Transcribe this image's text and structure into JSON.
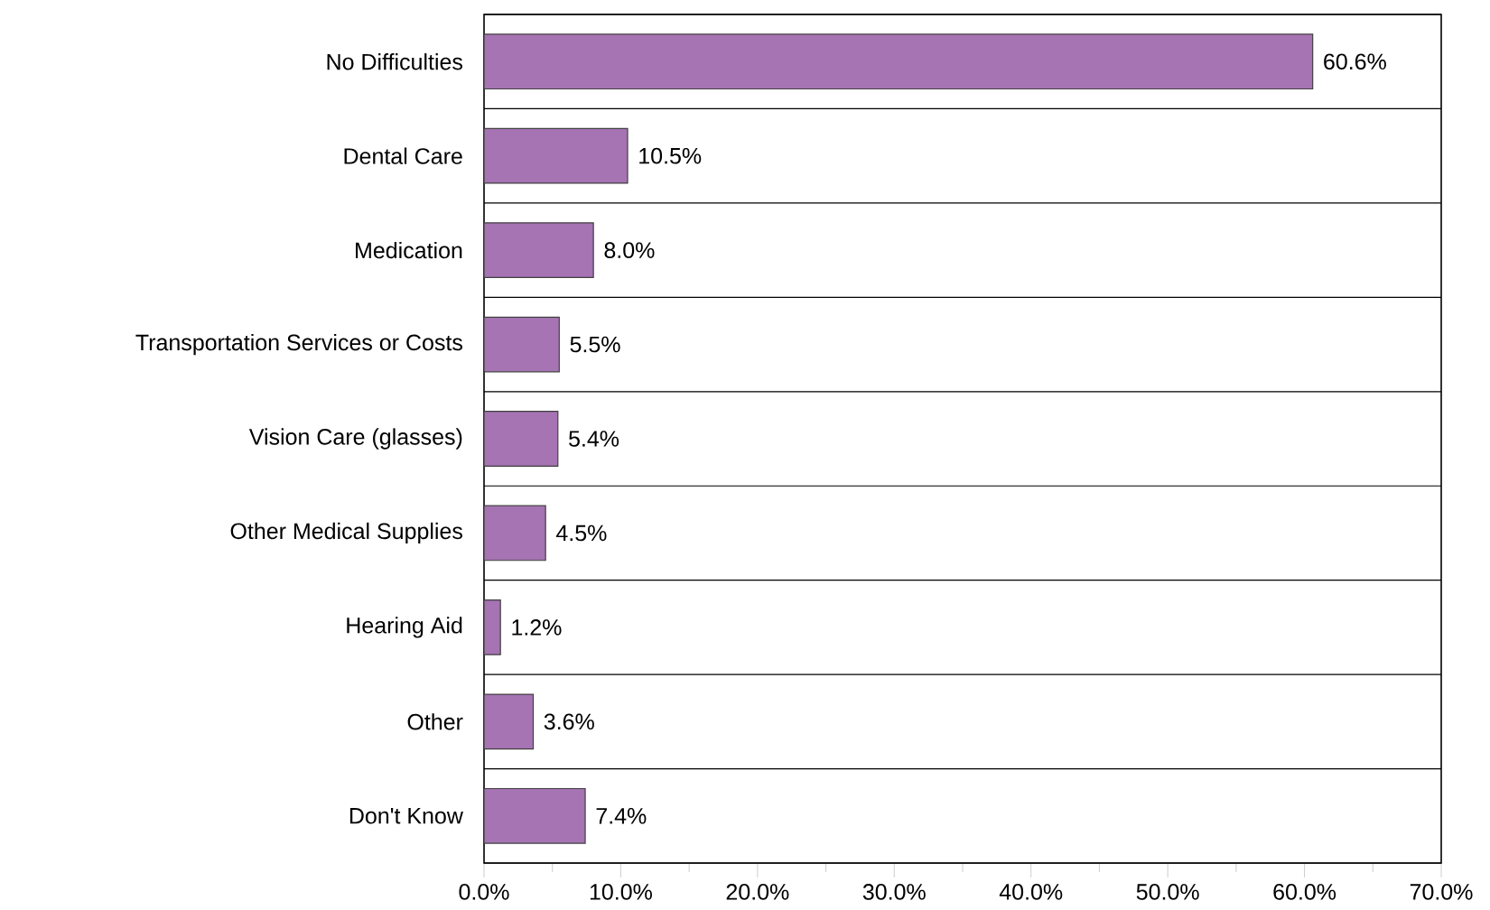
{
  "chart_data": {
    "type": "bar",
    "orientation": "horizontal",
    "categories": [
      "No Difficulties",
      "Dental Care",
      "Medication",
      "Transportation Services or Costs",
      "Vision Care (glasses)",
      "Other Medical Supplies",
      "Hearing Aid",
      "Other",
      "Don't Know"
    ],
    "values": [
      60.6,
      10.5,
      8.0,
      5.5,
      5.4,
      4.5,
      1.2,
      3.6,
      7.4
    ],
    "value_labels": [
      "60.6%",
      "10.5%",
      "8.0%",
      "5.5%",
      "5.4%",
      "4.5%",
      "1.2%",
      "3.6%",
      "7.4%"
    ],
    "color": "#a673b3",
    "xlim": [
      0,
      70
    ],
    "xticks": [
      {
        "value": 0,
        "label": "0.0%"
      },
      {
        "value": 10,
        "label": "10.0%"
      },
      {
        "value": 20,
        "label": "20.0%"
      },
      {
        "value": 30,
        "label": "30.0%"
      },
      {
        "value": 40,
        "label": "40.0%"
      },
      {
        "value": 50,
        "label": "50.0%"
      },
      {
        "value": 60,
        "label": "60.0%"
      },
      {
        "value": 70,
        "label": "70.0%"
      }
    ],
    "grid": "y"
  }
}
